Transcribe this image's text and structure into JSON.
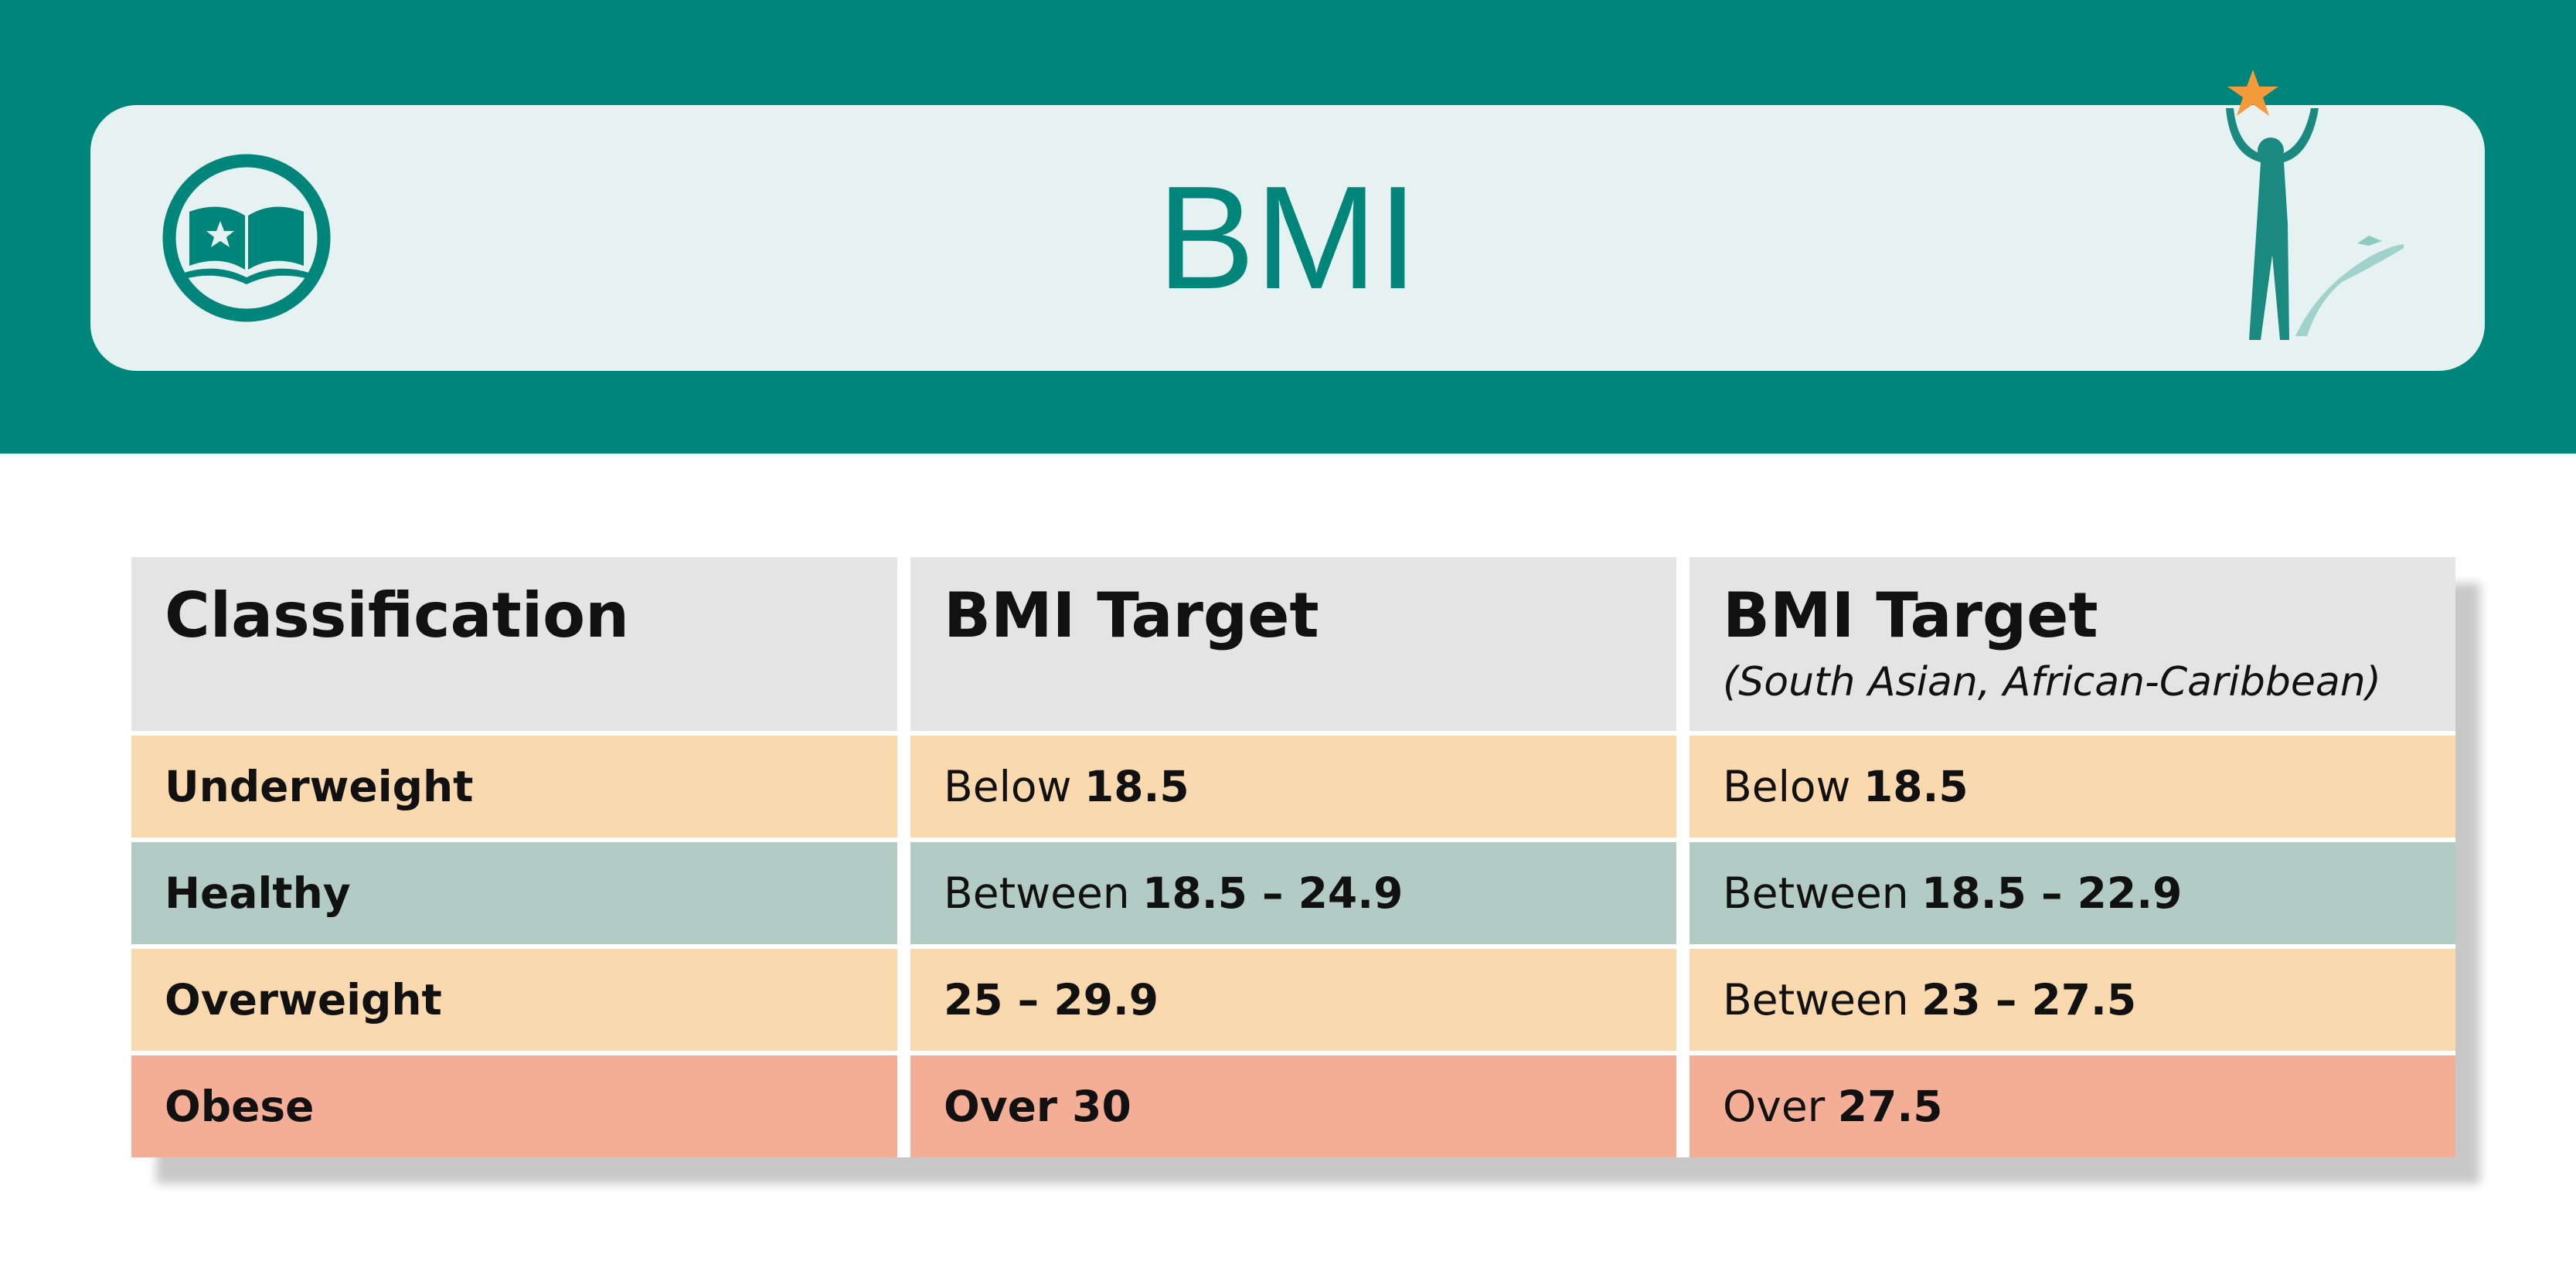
{
  "header": {
    "title": "BMI"
  },
  "table": {
    "columns": [
      {
        "title": "Classification"
      },
      {
        "title": "BMI Target"
      },
      {
        "title": "BMI Target",
        "subtitle": "(South Asian, African-Caribbean)"
      }
    ],
    "rows": [
      [
        {
          "strong": "Underweight"
        },
        {
          "plain": "Below",
          "strong": "18.5"
        },
        {
          "plain": "Below",
          "strong": "18.5"
        }
      ],
      [
        {
          "strong": "Healthy"
        },
        {
          "plain": "Between",
          "strong": "18.5 – 24.9"
        },
        {
          "plain": "Between",
          "strong": "18.5 – 22.9"
        }
      ],
      [
        {
          "strong": "Overweight"
        },
        {
          "strong": "25 – 29.9"
        },
        {
          "plain": "Between",
          "strong": "23 – 27.5"
        }
      ],
      [
        {
          "strong": "Obese"
        },
        {
          "strong": "Over 30"
        },
        {
          "plain": "Over",
          "strong": "27.5"
        }
      ]
    ]
  }
}
